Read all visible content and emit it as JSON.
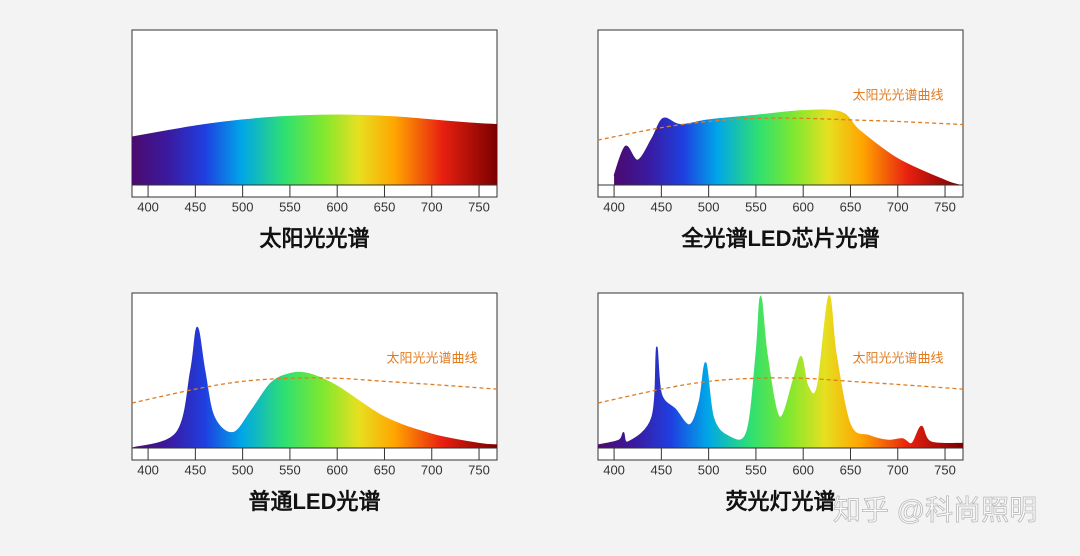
{
  "chart_data": [
    {
      "type": "area",
      "title": "太阳光光谱",
      "x": [
        383,
        420,
        460,
        500,
        540,
        580,
        620,
        660,
        700,
        740,
        769
      ],
      "values": [
        31,
        35,
        39,
        42,
        44,
        45,
        45,
        44,
        42,
        40,
        39
      ],
      "xlim": [
        383,
        769
      ],
      "ylim": [
        0,
        100
      ],
      "xticks": [
        400,
        450,
        500,
        550,
        600,
        650,
        700,
        750
      ]
    },
    {
      "type": "area",
      "title": "全光谱LED芯片光谱",
      "x": [
        400,
        412,
        425,
        440,
        452,
        470,
        500,
        550,
        600,
        640,
        660,
        700,
        750,
        765
      ],
      "values": [
        6,
        25,
        16,
        30,
        43,
        39,
        42,
        45,
        48,
        47,
        35,
        17,
        3,
        0
      ],
      "xlim": [
        383,
        769
      ],
      "ylim": [
        0,
        100
      ],
      "xticks": [
        400,
        450,
        500,
        550,
        600,
        650,
        700,
        750
      ],
      "reference": {
        "name": "太阳光光谱曲线",
        "color": "#e07b20",
        "x": [
          383,
          450,
          500,
          550,
          600,
          650,
          700,
          769
        ],
        "values": [
          29,
          37,
          41,
          43,
          43,
          42,
          41,
          39
        ]
      }
    },
    {
      "type": "area",
      "title": "普通LED光谱",
      "x": [
        383,
        430,
        445,
        452,
        460,
        470,
        490,
        510,
        530,
        550,
        570,
        600,
        650,
        700,
        750,
        769
      ],
      "values": [
        0,
        10,
        50,
        78,
        50,
        20,
        10,
        25,
        42,
        48,
        48,
        40,
        20,
        9,
        3,
        2
      ],
      "xlim": [
        383,
        769
      ],
      "ylim": [
        0,
        100
      ],
      "xticks": [
        400,
        450,
        500,
        550,
        600,
        650,
        700,
        750
      ],
      "reference": {
        "name": "太阳光光谱曲线",
        "color": "#e07b20",
        "x": [
          383,
          450,
          500,
          550,
          600,
          650,
          700,
          769
        ],
        "values": [
          29,
          38,
          43,
          45,
          45,
          43,
          41,
          38
        ]
      }
    },
    {
      "type": "area",
      "title": "荧光灯光谱",
      "x": [
        383,
        405,
        410,
        415,
        440,
        445,
        450,
        465,
        480,
        490,
        497,
        505,
        520,
        540,
        550,
        555,
        562,
        575,
        590,
        598,
        605,
        615,
        627,
        635,
        650,
        670,
        690,
        705,
        715,
        725,
        735,
        769
      ],
      "values": [
        2,
        5,
        10,
        4,
        20,
        65,
        35,
        25,
        15,
        30,
        55,
        20,
        8,
        10,
        60,
        98,
        60,
        20,
        45,
        59,
        40,
        40,
        98,
        60,
        15,
        8,
        5,
        6,
        3,
        14,
        4,
        3
      ],
      "xlim": [
        383,
        769
      ],
      "ylim": [
        0,
        100
      ],
      "xticks": [
        400,
        450,
        500,
        550,
        600,
        650,
        700,
        750
      ],
      "reference": {
        "name": "太阳光光谱曲线",
        "color": "#e07b20",
        "x": [
          383,
          450,
          500,
          550,
          600,
          650,
          700,
          769
        ],
        "values": [
          29,
          38,
          43,
          45,
          45,
          43,
          41,
          38
        ]
      }
    }
  ],
  "watermark": "知乎 @科尚照明"
}
